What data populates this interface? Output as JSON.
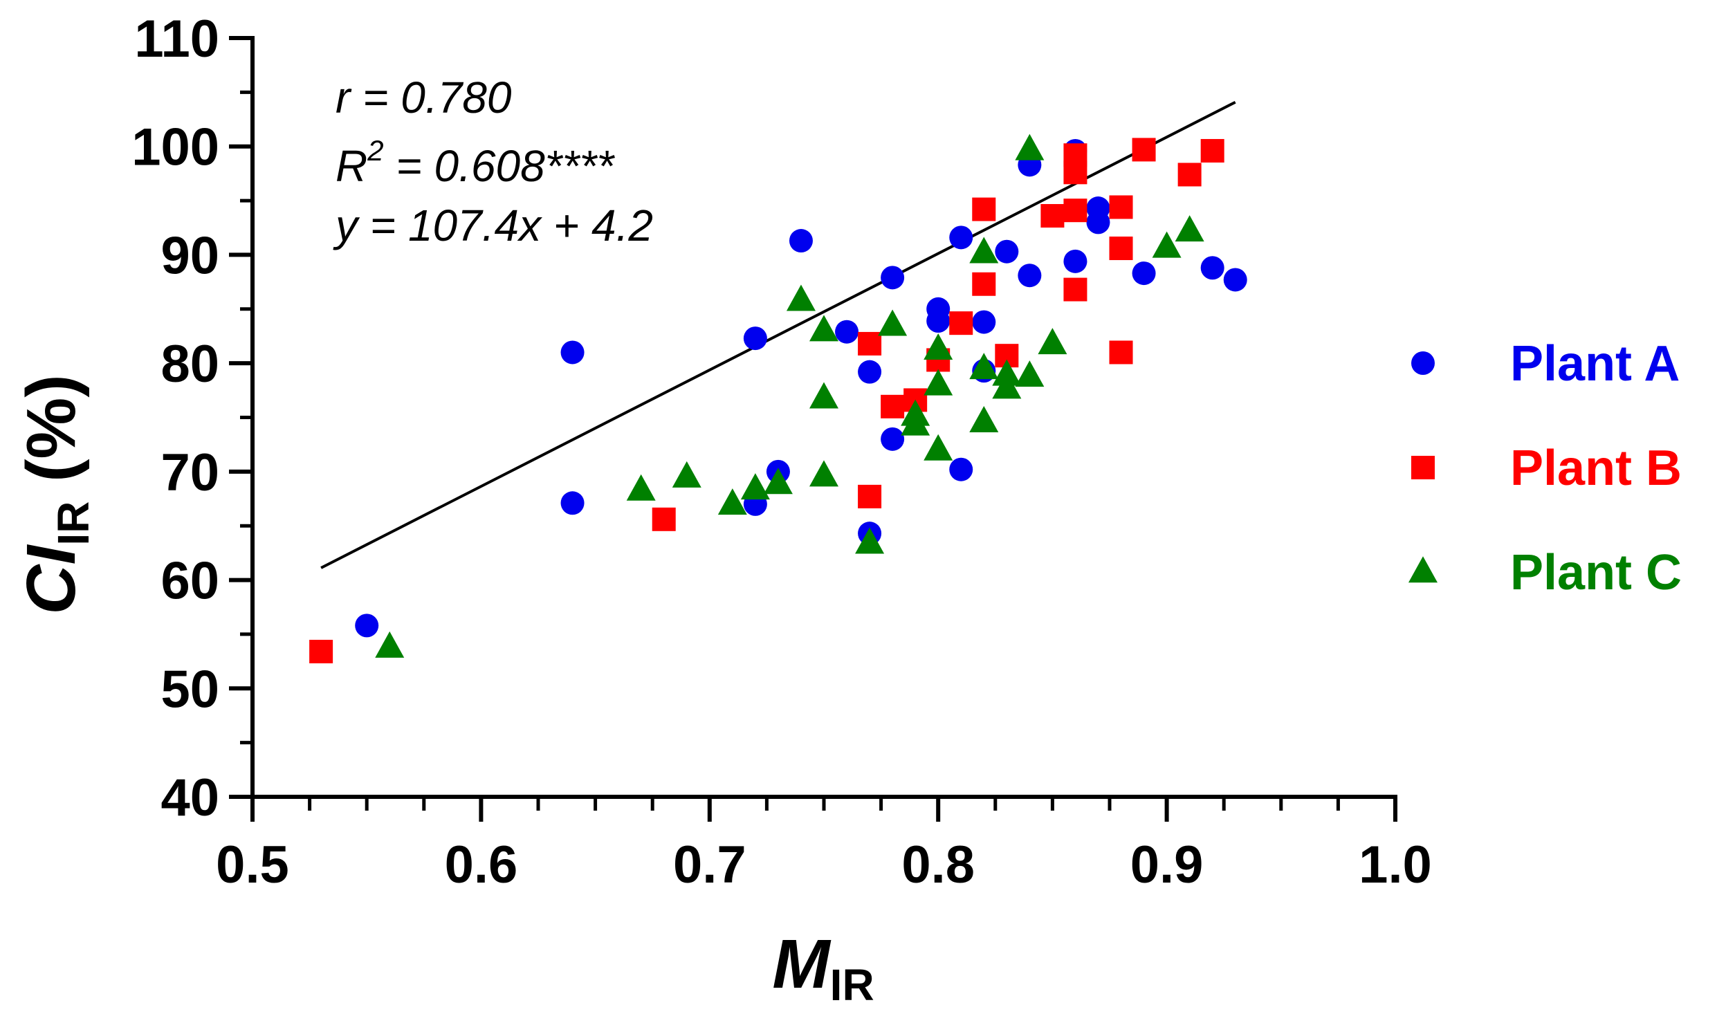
{
  "chart_data": {
    "type": "scatter",
    "title": "",
    "xlabel": {
      "main": "M",
      "sub": "IR"
    },
    "ylabel": {
      "main": "CI",
      "sub": "IR",
      "suffix": " (%)"
    },
    "xlim": [
      0.5,
      1.0
    ],
    "ylim": [
      40,
      110
    ],
    "xticks": [
      "0.5",
      "0.6",
      "0.7",
      "0.8",
      "0.9",
      "1.0"
    ],
    "yticks": [
      "40",
      "50",
      "60",
      "70",
      "80",
      "90",
      "100",
      "110"
    ],
    "annotations": {
      "r": "r = 0.780",
      "r2_prefix": "R",
      "r2_power": "2",
      "r2_rest": " = 0.608****",
      "equation": "y = 107.4x + 4.2"
    },
    "fit_line": {
      "slope": 107.4,
      "intercept": 4.2,
      "x_range": [
        0.53,
        0.93
      ]
    },
    "legend_position": "right",
    "series": [
      {
        "name": "Plant A",
        "marker": "circle",
        "color": "#0000ee",
        "points": [
          [
            0.55,
            55.8
          ],
          [
            0.64,
            81.0
          ],
          [
            0.64,
            67.1
          ],
          [
            0.72,
            82.3
          ],
          [
            0.72,
            67.0
          ],
          [
            0.73,
            70.0
          ],
          [
            0.74,
            91.3
          ],
          [
            0.76,
            82.9
          ],
          [
            0.77,
            79.2
          ],
          [
            0.77,
            64.3
          ],
          [
            0.78,
            87.9
          ],
          [
            0.78,
            73.0
          ],
          [
            0.8,
            85.0
          ],
          [
            0.8,
            83.9
          ],
          [
            0.81,
            91.6
          ],
          [
            0.81,
            70.2
          ],
          [
            0.82,
            83.8
          ],
          [
            0.82,
            79.3
          ],
          [
            0.83,
            90.3
          ],
          [
            0.84,
            98.3
          ],
          [
            0.84,
            88.1
          ],
          [
            0.86,
            99.6
          ],
          [
            0.86,
            89.4
          ],
          [
            0.87,
            94.3
          ],
          [
            0.87,
            93.0
          ],
          [
            0.89,
            88.3
          ],
          [
            0.92,
            88.8
          ],
          [
            0.93,
            87.7
          ]
        ]
      },
      {
        "name": "Plant B",
        "marker": "square",
        "color": "#ff0000",
        "points": [
          [
            0.53,
            53.4
          ],
          [
            0.68,
            65.6
          ],
          [
            0.77,
            81.8
          ],
          [
            0.77,
            67.7
          ],
          [
            0.78,
            76.0
          ],
          [
            0.79,
            76.6
          ],
          [
            0.8,
            80.3
          ],
          [
            0.81,
            83.7
          ],
          [
            0.82,
            94.2
          ],
          [
            0.82,
            87.3
          ],
          [
            0.83,
            80.7
          ],
          [
            0.85,
            93.6
          ],
          [
            0.86,
            99.2
          ],
          [
            0.86,
            97.6
          ],
          [
            0.86,
            94.1
          ],
          [
            0.86,
            86.8
          ],
          [
            0.88,
            94.4
          ],
          [
            0.88,
            90.6
          ],
          [
            0.88,
            81.0
          ],
          [
            0.89,
            99.7
          ],
          [
            0.91,
            97.4
          ],
          [
            0.92,
            99.6
          ]
        ]
      },
      {
        "name": "Plant C",
        "marker": "triangle",
        "color": "#008000",
        "points": [
          [
            0.56,
            53.8
          ],
          [
            0.67,
            68.3
          ],
          [
            0.69,
            69.5
          ],
          [
            0.71,
            67.0
          ],
          [
            0.72,
            68.4
          ],
          [
            0.73,
            68.9
          ],
          [
            0.74,
            85.8
          ],
          [
            0.75,
            83.0
          ],
          [
            0.75,
            76.8
          ],
          [
            0.75,
            69.6
          ],
          [
            0.77,
            63.4
          ],
          [
            0.78,
            83.5
          ],
          [
            0.79,
            75.2
          ],
          [
            0.79,
            74.3
          ],
          [
            0.8,
            81.3
          ],
          [
            0.8,
            78.0
          ],
          [
            0.8,
            72.0
          ],
          [
            0.82,
            90.2
          ],
          [
            0.82,
            79.5
          ],
          [
            0.82,
            74.6
          ],
          [
            0.83,
            78.9
          ],
          [
            0.83,
            77.7
          ],
          [
            0.84,
            99.7
          ],
          [
            0.84,
            78.8
          ],
          [
            0.85,
            81.8
          ],
          [
            0.9,
            90.7
          ],
          [
            0.91,
            92.2
          ]
        ]
      }
    ]
  }
}
